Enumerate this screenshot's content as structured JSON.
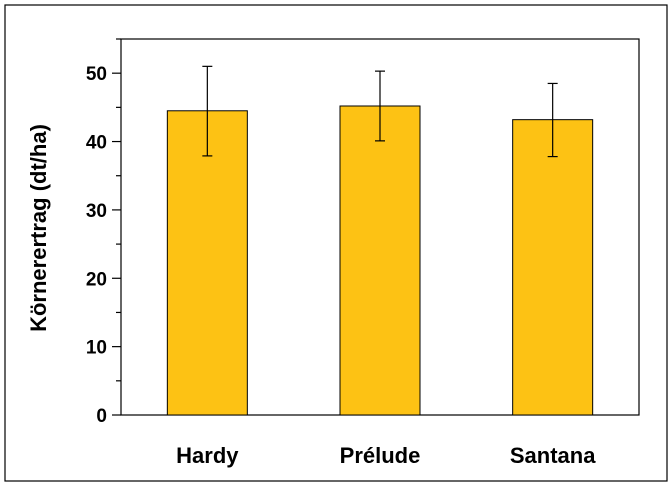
{
  "chart_data": {
    "type": "bar",
    "title": "",
    "xlabel": "",
    "ylabel": "Körnerertrag (dt/ha)",
    "categories": [
      "Hardy",
      "Prélude",
      "Santana"
    ],
    "values": [
      44.5,
      45.2,
      43.2
    ],
    "error_upper": [
      51.0,
      50.3,
      48.5
    ],
    "error_lower": [
      37.9,
      40.1,
      37.8
    ],
    "ylim": [
      0,
      55
    ],
    "yticks": [
      0,
      10,
      20,
      30,
      40,
      50
    ],
    "minor_tick_step": 5,
    "grid": false,
    "legend": "none",
    "bar_color": "#FDC214",
    "bar_edge_color": "#000000"
  }
}
